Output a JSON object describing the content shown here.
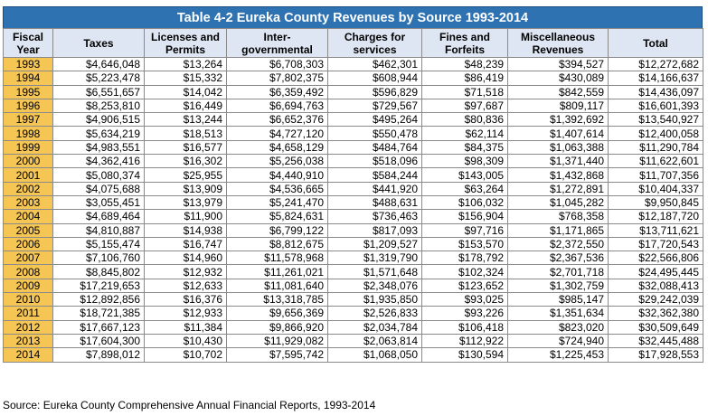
{
  "title": "Table 4-2 Eureka County Revenues by Source 1993-2014",
  "headers": {
    "fiscal_year": [
      "Fiscal",
      "Year"
    ],
    "taxes": [
      "Taxes"
    ],
    "licenses": [
      "Licenses and",
      "Permits"
    ],
    "intergov": [
      "Inter-",
      "governmental"
    ],
    "charges": [
      "Charges for",
      "services"
    ],
    "fines": [
      "Fines and",
      "Forfeits"
    ],
    "misc": [
      "Miscellaneous",
      "Revenues"
    ],
    "total": [
      "Total"
    ]
  },
  "rows": [
    [
      "1993",
      "$4,646,048",
      "$13,264",
      "$6,708,303",
      "$462,301",
      "$48,239",
      "$394,527",
      "$12,272,682"
    ],
    [
      "1994",
      "$5,223,478",
      "$15,332",
      "$7,802,375",
      "$608,944",
      "$86,419",
      "$430,089",
      "$14,166,637"
    ],
    [
      "1995",
      "$6,551,657",
      "$14,042",
      "$6,359,492",
      "$596,829",
      "$71,518",
      "$842,559",
      "$14,436,097"
    ],
    [
      "1996",
      "$8,253,810",
      "$16,449",
      "$6,694,763",
      "$729,567",
      "$97,687",
      "$809,117",
      "$16,601,393"
    ],
    [
      "1997",
      "$4,906,515",
      "$13,244",
      "$6,652,376",
      "$495,264",
      "$80,836",
      "$1,392,692",
      "$13,540,927"
    ],
    [
      "1998",
      "$5,634,219",
      "$18,513",
      "$4,727,120",
      "$550,478",
      "$62,114",
      "$1,407,614",
      "$12,400,058"
    ],
    [
      "1999",
      "$4,983,551",
      "$16,577",
      "$4,658,129",
      "$484,764",
      "$84,375",
      "$1,063,388",
      "$11,290,784"
    ],
    [
      "2000",
      "$4,362,416",
      "$16,302",
      "$5,256,038",
      "$518,096",
      "$98,309",
      "$1,371,440",
      "$11,622,601"
    ],
    [
      "2001",
      "$5,080,374",
      "$25,955",
      "$4,440,910",
      "$584,244",
      "$143,005",
      "$1,432,868",
      "$11,707,356"
    ],
    [
      "2002",
      "$4,075,688",
      "$13,909",
      "$4,536,665",
      "$441,920",
      "$63,264",
      "$1,272,891",
      "$10,404,337"
    ],
    [
      "2003",
      "$3,055,451",
      "$13,979",
      "$5,241,470",
      "$488,631",
      "$106,032",
      "$1,045,282",
      "$9,950,845"
    ],
    [
      "2004",
      "$4,689,464",
      "$11,900",
      "$5,824,631",
      "$736,463",
      "$156,904",
      "$768,358",
      "$12,187,720"
    ],
    [
      "2005",
      "$4,810,887",
      "$14,938",
      "$6,799,122",
      "$817,093",
      "$97,716",
      "$1,171,865",
      "$13,711,621"
    ],
    [
      "2006",
      "$5,155,474",
      "$16,747",
      "$8,812,675",
      "$1,209,527",
      "$153,570",
      "$2,372,550",
      "$17,720,543"
    ],
    [
      "2007",
      "$7,106,760",
      "$14,960",
      "$11,578,968",
      "$1,319,790",
      "$178,792",
      "$2,367,536",
      "$22,566,806"
    ],
    [
      "2008",
      "$8,845,802",
      "$12,932",
      "$11,261,021",
      "$1,571,648",
      "$102,324",
      "$2,701,718",
      "$24,495,445"
    ],
    [
      "2009",
      "$17,219,653",
      "$12,633",
      "$11,081,640",
      "$2,348,076",
      "$123,652",
      "$1,302,759",
      "$32,088,413"
    ],
    [
      "2010",
      "$12,892,856",
      "$16,376",
      "$13,318,785",
      "$1,935,850",
      "$93,025",
      "$985,147",
      "$29,242,039"
    ],
    [
      "2011",
      "$18,721,385",
      "$12,933",
      "$9,656,369",
      "$2,526,833",
      "$93,226",
      "$1,351,634",
      "$32,362,380"
    ],
    [
      "2012",
      "$17,667,123",
      "$11,384",
      "$9,866,920",
      "$2,034,784",
      "$106,418",
      "$823,020",
      "$30,509,649"
    ],
    [
      "2013",
      "$17,604,300",
      "$10,430",
      "$11,929,082",
      "$2,063,814",
      "$112,922",
      "$724,940",
      "$32,445,488"
    ],
    [
      "2014",
      "$7,898,012",
      "$10,702",
      "$7,595,742",
      "$1,068,050",
      "$130,594",
      "$1,225,453",
      "$17,928,553"
    ]
  ],
  "source": "Source: Eureka County Comprehensive Annual Financial Reports, 1993-2014",
  "colors": {
    "title_bg": "#2e72b2",
    "header_bg": "#dfe6f3",
    "year_bg": "#f6c654"
  }
}
